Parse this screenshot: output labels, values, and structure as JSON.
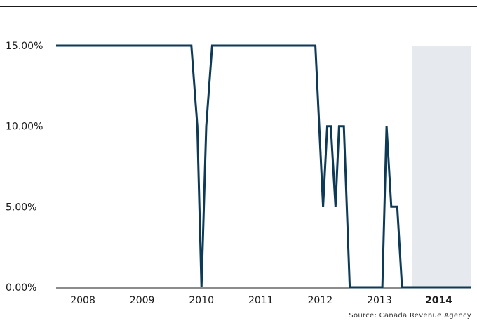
{
  "header_fragment": "",
  "source_note": "Source: Canada Revenue Agency",
  "colors": {
    "line": "#0d3a56",
    "forecast_band": "#e6eaef",
    "axis": "#1a1a1a"
  },
  "chart_data": {
    "type": "line",
    "title": "",
    "xlabel": "",
    "ylabel": "",
    "ylim": [
      0,
      15
    ],
    "y_ticks": [
      "0.00%",
      "5.00%",
      "10.00%",
      "15.00%"
    ],
    "y_tick_values": [
      0,
      5,
      10,
      15
    ],
    "x_ticks": [
      "2008",
      "2009",
      "2010",
      "2011",
      "2012",
      "2013",
      "2014"
    ],
    "x_tick_values": [
      2008,
      2009,
      2010,
      2011,
      2012,
      2013,
      2014
    ],
    "x_tick_bold": "2014",
    "xlim": [
      2007.55,
      2014.55
    ],
    "shaded_region": [
      2013.55,
      2014.55
    ],
    "grid": false,
    "series": [
      {
        "x": [
          2007.55,
          2009.83,
          2009.93,
          2010.0,
          2010.08,
          2010.18,
          2011.0,
          2011.92,
          2012.05,
          2012.12,
          2012.18,
          2012.26,
          2012.32,
          2012.4,
          2012.5,
          2012.6,
          2012.75,
          2013.05,
          2013.12,
          2013.2,
          2013.3,
          2013.38,
          2013.55,
          2014.55
        ],
        "y": [
          15,
          15,
          10,
          0,
          10,
          15,
          15,
          15,
          5,
          10,
          10,
          5,
          10,
          10,
          0,
          0,
          0,
          0,
          10,
          5,
          5,
          0,
          0,
          0
        ]
      }
    ]
  }
}
